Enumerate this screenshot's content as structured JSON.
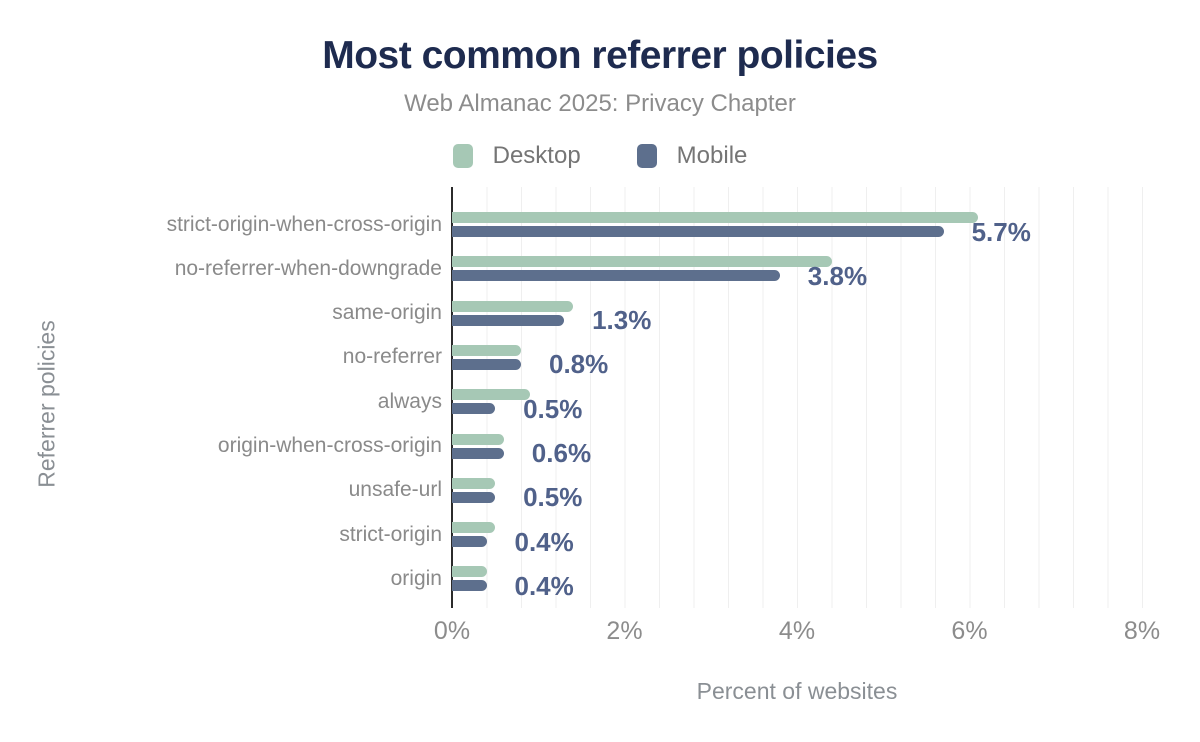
{
  "title": "Most common referrer policies",
  "subtitle": "Web Almanac 2025: Privacy Chapter",
  "legend": [
    {
      "label": "Desktop",
      "color": "#a6c8b5"
    },
    {
      "label": "Mobile",
      "color": "#5d6f8d"
    }
  ],
  "colors": {
    "title": "#1e2b4f",
    "muted_text": "#8c8c8c",
    "value_label": "#50618a",
    "axis_line": "#2b2b2b",
    "gridline": "#efefef",
    "background": "#ffffff"
  },
  "chart_data": {
    "type": "bar",
    "orientation": "horizontal",
    "title": "Most common referrer policies",
    "subtitle": "Web Almanac 2025: Privacy Chapter",
    "categories": [
      "strict-origin-when-cross-origin",
      "no-referrer-when-downgrade",
      "same-origin",
      "no-referrer",
      "always",
      "origin-when-cross-origin",
      "unsafe-url",
      "strict-origin",
      "origin"
    ],
    "series": [
      {
        "name": "Desktop",
        "color": "#a6c8b5",
        "values": [
          6.1,
          4.4,
          1.4,
          0.8,
          0.9,
          0.6,
          0.5,
          0.5,
          0.4
        ]
      },
      {
        "name": "Mobile",
        "color": "#5d6f8d",
        "values": [
          5.7,
          3.8,
          1.3,
          0.8,
          0.5,
          0.6,
          0.5,
          0.4,
          0.4
        ]
      }
    ],
    "data_labels": [
      "5.7%",
      "3.8%",
      "1.3%",
      "0.8%",
      "0.5%",
      "0.6%",
      "0.5%",
      "0.4%",
      "0.4%"
    ],
    "data_labels_series": "Mobile",
    "xlabel": "Percent of websites",
    "ylabel": "Referrer policies",
    "x_ticks": [
      "0%",
      "2%",
      "4%",
      "6%",
      "8%"
    ],
    "x_tick_values": [
      0,
      2,
      4,
      6,
      8
    ],
    "xlim": [
      0,
      8
    ],
    "grid": true,
    "grid_interval": 0.4,
    "legend_position": "top"
  }
}
